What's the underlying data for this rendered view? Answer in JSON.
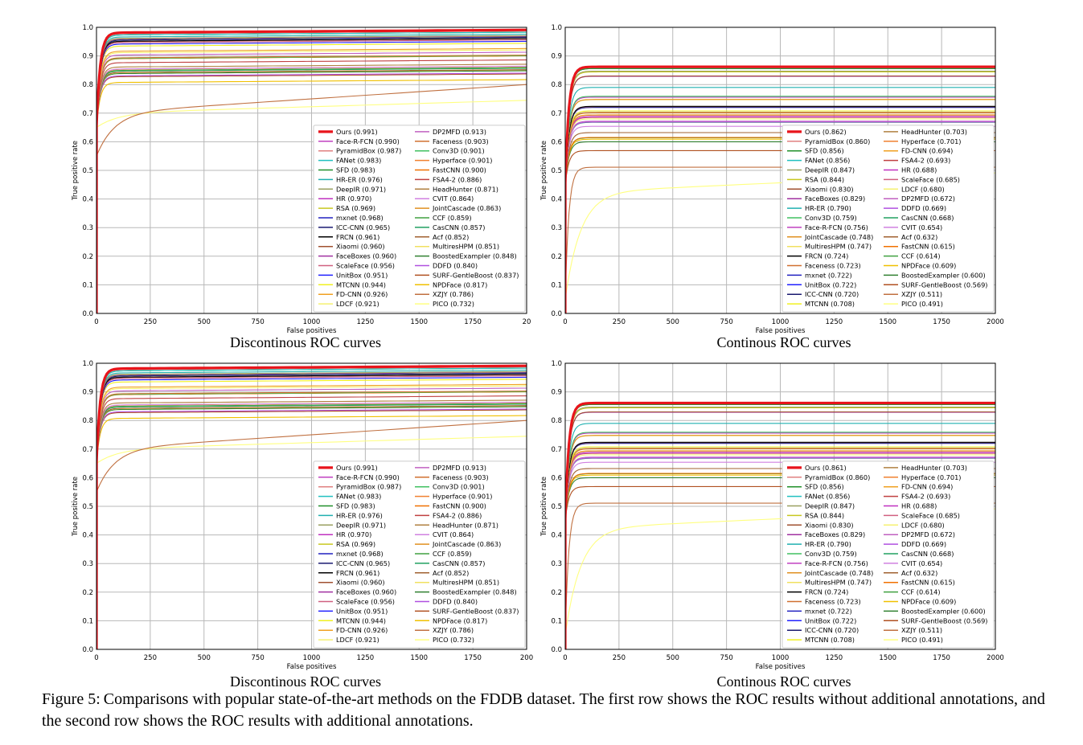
{
  "colors": {
    "Ours": "#e8141b",
    "Face-R-FCN": "#c040c0",
    "PyramidBox": "#e08080",
    "FANet": "#20c0c0",
    "SFD": "#20902a",
    "HR-ER": "#20b0b0",
    "DeepIR": "#9aa060",
    "HR": "#c030c0",
    "RSA": "#c8c820",
    "mxnet": "#2020c0",
    "ICC-CNN": "#1a1a70",
    "FRCN": "#000000",
    "Xiaomi": "#a05030",
    "FaceBoxes": "#a030a0",
    "ScaleFace": "#d06080",
    "UnitBox": "#2020ff",
    "MTCNN": "#f0f020",
    "FD-CNN": "#f0a020",
    "LDCF": "#f5f070",
    "DP2MFD": "#c060c0",
    "Faceness": "#d07030",
    "Conv3D": "#40c060",
    "Hyperface": "#f08030",
    "FastCNN": "#f07000",
    "FSA4-2": "#c04040",
    "HeadHunter": "#b08040",
    "CVIT": "#d080e0",
    "JointCascade": "#e09020",
    "CCF": "#40a040",
    "CasCNN": "#20a060",
    "Acf": "#a06030",
    "MultiresHPM": "#f0e060",
    "BoostedExampler": "#308030",
    "DDFD": "#b050e0",
    "SURF-GentleBoost": "#b05020",
    "NPDFace": "#f0c000",
    "XZJY": "#c07040",
    "PICO": "#ffff80",
    "grid": "#b8b8b8",
    "frame": "#000000"
  },
  "figure": {
    "number": "Figure 5:",
    "caption": "Comparisons with popular state-of-the-art methods on the FDDB dataset. The first row shows the ROC results without additional annotations, and the second row shows the ROC results with additional annotations."
  },
  "panels": [
    {
      "caption": "Discontinous ROC curves",
      "chart_data": {
        "type": "line",
        "xlabel": "False positives",
        "ylabel": "True positive rate",
        "xlim": [
          0,
          2000
        ],
        "ylim": [
          0,
          1.0
        ],
        "grid": true,
        "legend_position": "lower-right",
        "x_tick_labels": [
          "0",
          "250",
          "500",
          "750",
          "1000",
          "1250",
          "1500",
          "1750",
          "20"
        ],
        "y_tick_labels": [
          "0.0",
          "0.1",
          "0.2",
          "0.3",
          "0.4",
          "0.5",
          "0.6",
          "0.7",
          "0.8",
          "0.9",
          "1.0"
        ],
        "legend_columns": 2,
        "series": [
          {
            "name": "Ours",
            "value": "0.991"
          },
          {
            "name": "Face-R-FCN",
            "value": "0.990"
          },
          {
            "name": "PyramidBox",
            "value": "0.987"
          },
          {
            "name": "FANet",
            "value": "0.983"
          },
          {
            "name": "SFD",
            "value": "0.983"
          },
          {
            "name": "HR-ER",
            "value": "0.976"
          },
          {
            "name": "DeepIR",
            "value": "0.971"
          },
          {
            "name": "HR",
            "value": "0.970"
          },
          {
            "name": "RSA",
            "value": "0.969"
          },
          {
            "name": "mxnet",
            "value": "0.968"
          },
          {
            "name": "ICC-CNN",
            "value": "0.965"
          },
          {
            "name": "FRCN",
            "value": "0.961"
          },
          {
            "name": "Xiaomi",
            "value": "0.960"
          },
          {
            "name": "FaceBoxes",
            "value": "0.960"
          },
          {
            "name": "ScaleFace",
            "value": "0.956"
          },
          {
            "name": "UnitBox",
            "value": "0.951"
          },
          {
            "name": "MTCNN",
            "value": "0.944"
          },
          {
            "name": "FD-CNN",
            "value": "0.926"
          },
          {
            "name": "LDCF",
            "value": "0.921"
          },
          {
            "name": "DP2MFD",
            "value": "0.913"
          },
          {
            "name": "Faceness",
            "value": "0.903"
          },
          {
            "name": "Conv3D",
            "value": "0.901"
          },
          {
            "name": "Hyperface",
            "value": "0.901"
          },
          {
            "name": "FastCNN",
            "value": "0.900"
          },
          {
            "name": "FSA4-2",
            "value": "0.886"
          },
          {
            "name": "HeadHunter",
            "value": "0.871"
          },
          {
            "name": "CVIT",
            "value": "0.864"
          },
          {
            "name": "JointCascade",
            "value": "0.863"
          },
          {
            "name": "CCF",
            "value": "0.859"
          },
          {
            "name": "CasCNN",
            "value": "0.857"
          },
          {
            "name": "Acf",
            "value": "0.852"
          },
          {
            "name": "MultiresHPM",
            "value": "0.851"
          },
          {
            "name": "BoostedExampler",
            "value": "0.848"
          },
          {
            "name": "DDFD",
            "value": "0.840"
          },
          {
            "name": "SURF-GentleBoost",
            "value": "0.837"
          },
          {
            "name": "NPDFace",
            "value": "0.817"
          },
          {
            "name": "XZJY",
            "value": "0.786"
          },
          {
            "name": "PICO",
            "value": "0.732"
          }
        ]
      }
    },
    {
      "caption": "Continous ROC curves",
      "chart_data": {
        "type": "line",
        "xlabel": "False positives",
        "ylabel": "True positive rate",
        "xlim": [
          0,
          2000
        ],
        "ylim": [
          0,
          1.0
        ],
        "grid": true,
        "legend_position": "lower-right",
        "x_tick_labels": [
          "0",
          "250",
          "500",
          "750",
          "1000",
          "1250",
          "1500",
          "1750",
          "2000"
        ],
        "y_tick_labels": [
          "0.0",
          "0.1",
          "0.2",
          "0.3",
          "0.4",
          "0.5",
          "0.6",
          "0.7",
          "0.8",
          "0.9",
          "1.0"
        ],
        "legend_columns": 2,
        "series": [
          {
            "name": "Ours",
            "value": "0.862"
          },
          {
            "name": "PyramidBox",
            "value": "0.860"
          },
          {
            "name": "SFD",
            "value": "0.856"
          },
          {
            "name": "FANet",
            "value": "0.856"
          },
          {
            "name": "DeepIR",
            "value": "0.847"
          },
          {
            "name": "RSA",
            "value": "0.844"
          },
          {
            "name": "Xiaomi",
            "value": "0.830"
          },
          {
            "name": "FaceBoxes",
            "value": "0.829"
          },
          {
            "name": "HR-ER",
            "value": "0.790"
          },
          {
            "name": "Conv3D",
            "value": "0.759"
          },
          {
            "name": "Face-R-FCN",
            "value": "0.756"
          },
          {
            "name": "JointCascade",
            "value": "0.748"
          },
          {
            "name": "MultiresHPM",
            "value": "0.747"
          },
          {
            "name": "FRCN",
            "value": "0.724"
          },
          {
            "name": "Faceness",
            "value": "0.723"
          },
          {
            "name": "mxnet",
            "value": "0.722"
          },
          {
            "name": "UnitBox",
            "value": "0.722"
          },
          {
            "name": "ICC-CNN",
            "value": "0.720"
          },
          {
            "name": "MTCNN",
            "value": "0.708"
          },
          {
            "name": "HeadHunter",
            "value": "0.703"
          },
          {
            "name": "Hyperface",
            "value": "0.701"
          },
          {
            "name": "FD-CNN",
            "value": "0.694"
          },
          {
            "name": "FSA4-2",
            "value": "0.693"
          },
          {
            "name": "HR",
            "value": "0.688"
          },
          {
            "name": "ScaleFace",
            "value": "0.685"
          },
          {
            "name": "LDCF",
            "value": "0.680"
          },
          {
            "name": "DP2MFD",
            "value": "0.672"
          },
          {
            "name": "DDFD",
            "value": "0.669"
          },
          {
            "name": "CasCNN",
            "value": "0.668"
          },
          {
            "name": "CVIT",
            "value": "0.654"
          },
          {
            "name": "Acf",
            "value": "0.632"
          },
          {
            "name": "FastCNN",
            "value": "0.615"
          },
          {
            "name": "CCF",
            "value": "0.614"
          },
          {
            "name": "NPDFace",
            "value": "0.609"
          },
          {
            "name": "BoostedExampler",
            "value": "0.600"
          },
          {
            "name": "SURF-GentleBoost",
            "value": "0.569"
          },
          {
            "name": "XZJY",
            "value": "0.511"
          },
          {
            "name": "PICO",
            "value": "0.491"
          }
        ]
      }
    },
    {
      "caption": "Discontinous ROC curves",
      "chart_data": {
        "type": "line",
        "xlabel": "False positives",
        "ylabel": "True positive rate",
        "xlim": [
          0,
          2000
        ],
        "ylim": [
          0,
          1.0
        ],
        "grid": true,
        "legend_position": "lower-right",
        "x_tick_labels": [
          "0",
          "250",
          "500",
          "750",
          "1000",
          "1250",
          "1500",
          "1750",
          "200"
        ],
        "y_tick_labels": [
          "0.0",
          "0.1",
          "0.2",
          "0.3",
          "0.4",
          "0.5",
          "0.6",
          "0.7",
          "0.8",
          "0.9",
          "1.0"
        ],
        "legend_columns": 2,
        "series": [
          {
            "name": "Ours",
            "value": "0.991"
          },
          {
            "name": "Face-R-FCN",
            "value": "0.990"
          },
          {
            "name": "PyramidBox",
            "value": "0.987"
          },
          {
            "name": "FANet",
            "value": "0.983"
          },
          {
            "name": "SFD",
            "value": "0.983"
          },
          {
            "name": "HR-ER",
            "value": "0.976"
          },
          {
            "name": "DeepIR",
            "value": "0.971"
          },
          {
            "name": "HR",
            "value": "0.970"
          },
          {
            "name": "RSA",
            "value": "0.969"
          },
          {
            "name": "mxnet",
            "value": "0.968"
          },
          {
            "name": "ICC-CNN",
            "value": "0.965"
          },
          {
            "name": "FRCN",
            "value": "0.961"
          },
          {
            "name": "Xiaomi",
            "value": "0.960"
          },
          {
            "name": "FaceBoxes",
            "value": "0.960"
          },
          {
            "name": "ScaleFace",
            "value": "0.956"
          },
          {
            "name": "UnitBox",
            "value": "0.951"
          },
          {
            "name": "MTCNN",
            "value": "0.944"
          },
          {
            "name": "FD-CNN",
            "value": "0.926"
          },
          {
            "name": "LDCF",
            "value": "0.921"
          },
          {
            "name": "DP2MFD",
            "value": "0.913"
          },
          {
            "name": "Faceness",
            "value": "0.903"
          },
          {
            "name": "Conv3D",
            "value": "0.901"
          },
          {
            "name": "Hyperface",
            "value": "0.901"
          },
          {
            "name": "FastCNN",
            "value": "0.900"
          },
          {
            "name": "FSA4-2",
            "value": "0.886"
          },
          {
            "name": "HeadHunter",
            "value": "0.871"
          },
          {
            "name": "CVIT",
            "value": "0.864"
          },
          {
            "name": "JointCascade",
            "value": "0.863"
          },
          {
            "name": "CCF",
            "value": "0.859"
          },
          {
            "name": "CasCNN",
            "value": "0.857"
          },
          {
            "name": "Acf",
            "value": "0.852"
          },
          {
            "name": "MultiresHPM",
            "value": "0.851"
          },
          {
            "name": "BoostedExampler",
            "value": "0.848"
          },
          {
            "name": "DDFD",
            "value": "0.840"
          },
          {
            "name": "SURF-GentleBoost",
            "value": "0.837"
          },
          {
            "name": "NPDFace",
            "value": "0.817"
          },
          {
            "name": "XZJY",
            "value": "0.786"
          },
          {
            "name": "PICO",
            "value": "0.732"
          }
        ]
      }
    },
    {
      "caption": "Continous ROC curves",
      "chart_data": {
        "type": "line",
        "xlabel": "False positives",
        "ylabel": "True positive rate",
        "xlim": [
          0,
          2000
        ],
        "ylim": [
          0,
          1.0
        ],
        "grid": true,
        "legend_position": "lower-right",
        "x_tick_labels": [
          "0",
          "250",
          "500",
          "750",
          "1000",
          "1250",
          "1500",
          "1750",
          "2000"
        ],
        "y_tick_labels": [
          "0.0",
          "0.1",
          "0.2",
          "0.3",
          "0.4",
          "0.5",
          "0.6",
          "0.7",
          "0.8",
          "0.9",
          "1.0"
        ],
        "legend_columns": 2,
        "series": [
          {
            "name": "Ours",
            "value": "0.861"
          },
          {
            "name": "PyramidBox",
            "value": "0.860"
          },
          {
            "name": "SFD",
            "value": "0.856"
          },
          {
            "name": "FANet",
            "value": "0.856"
          },
          {
            "name": "DeepIR",
            "value": "0.847"
          },
          {
            "name": "RSA",
            "value": "0.844"
          },
          {
            "name": "Xiaomi",
            "value": "0.830"
          },
          {
            "name": "FaceBoxes",
            "value": "0.829"
          },
          {
            "name": "HR-ER",
            "value": "0.790"
          },
          {
            "name": "Conv3D",
            "value": "0.759"
          },
          {
            "name": "Face-R-FCN",
            "value": "0.756"
          },
          {
            "name": "JointCascade",
            "value": "0.748"
          },
          {
            "name": "MultiresHPM",
            "value": "0.747"
          },
          {
            "name": "FRCN",
            "value": "0.724"
          },
          {
            "name": "Faceness",
            "value": "0.723"
          },
          {
            "name": "mxnet",
            "value": "0.722"
          },
          {
            "name": "UnitBox",
            "value": "0.722"
          },
          {
            "name": "ICC-CNN",
            "value": "0.720"
          },
          {
            "name": "MTCNN",
            "value": "0.708"
          },
          {
            "name": "HeadHunter",
            "value": "0.703"
          },
          {
            "name": "Hyperface",
            "value": "0.701"
          },
          {
            "name": "FD-CNN",
            "value": "0.694"
          },
          {
            "name": "FSA4-2",
            "value": "0.693"
          },
          {
            "name": "HR",
            "value": "0.688"
          },
          {
            "name": "ScaleFace",
            "value": "0.685"
          },
          {
            "name": "LDCF",
            "value": "0.680"
          },
          {
            "name": "DP2MFD",
            "value": "0.672"
          },
          {
            "name": "DDFD",
            "value": "0.669"
          },
          {
            "name": "CasCNN",
            "value": "0.668"
          },
          {
            "name": "CVIT",
            "value": "0.654"
          },
          {
            "name": "Acf",
            "value": "0.632"
          },
          {
            "name": "FastCNN",
            "value": "0.615"
          },
          {
            "name": "CCF",
            "value": "0.614"
          },
          {
            "name": "NPDFace",
            "value": "0.609"
          },
          {
            "name": "BoostedExampler",
            "value": "0.600"
          },
          {
            "name": "SURF-GentleBoost",
            "value": "0.569"
          },
          {
            "name": "XZJY",
            "value": "0.511"
          },
          {
            "name": "PICO",
            "value": "0.491"
          }
        ]
      }
    }
  ]
}
